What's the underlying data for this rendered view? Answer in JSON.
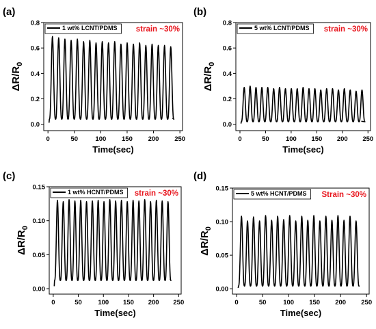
{
  "colors": {
    "line": "#000000",
    "strain": "#e8141c",
    "axis": "#000000"
  },
  "chart_data": [
    {
      "type": "line",
      "panel_label": "(a)",
      "legend": "1 wt% LCNT/PDMS",
      "annotation": "strain ~30%",
      "xlabel": "Time(sec)",
      "ylabel": "ΔR/R",
      "ylabel_sub": "0",
      "xlim": [
        -8,
        255
      ],
      "ylim": [
        -0.05,
        0.8
      ],
      "xticks": [
        0,
        50,
        100,
        150,
        200,
        250
      ],
      "yticks": [
        0.0,
        0.2,
        0.4,
        0.6,
        0.8
      ],
      "ytick_labels": [
        "0.0",
        "0.2",
        "0.4",
        "0.6",
        "0.8"
      ],
      "period_sec": 11.8,
      "start_sec": 2,
      "end_sec": 236,
      "baseline": 0.04,
      "peaks": [
        0.69,
        0.68,
        0.67,
        0.66,
        0.67,
        0.65,
        0.66,
        0.64,
        0.65,
        0.64,
        0.65,
        0.63,
        0.64,
        0.63,
        0.64,
        0.62,
        0.63,
        0.62,
        0.62,
        0.61
      ]
    },
    {
      "type": "line",
      "panel_label": "(b)",
      "legend": "5 wt% LCNT/PDMS",
      "annotation": "strain ~30%",
      "xlabel": "Time(sec)",
      "ylabel": "ΔR/R",
      "ylabel_sub": "0",
      "xlim": [
        -8,
        255
      ],
      "ylim": [
        -0.05,
        0.8
      ],
      "xticks": [
        0,
        50,
        100,
        150,
        200,
        250
      ],
      "yticks": [
        0.0,
        0.2,
        0.4,
        0.6,
        0.8
      ],
      "ytick_labels": [
        "0.0",
        "0.2",
        "0.4",
        "0.6",
        "0.8"
      ],
      "period_sec": 11.5,
      "start_sec": 2,
      "end_sec": 237,
      "baseline": 0.02,
      "peaks": [
        0.29,
        0.3,
        0.29,
        0.29,
        0.29,
        0.28,
        0.29,
        0.28,
        0.28,
        0.28,
        0.29,
        0.28,
        0.28,
        0.27,
        0.28,
        0.28,
        0.27,
        0.28,
        0.27,
        0.26,
        0.27
      ]
    },
    {
      "type": "line",
      "panel_label": "(c)",
      "legend": "1 wt% HCNT/PDMS",
      "annotation": "strain ~30%",
      "xlabel": "Time(sec)",
      "ylabel": "ΔR/R",
      "ylabel_sub": "0",
      "xlim": [
        -8,
        255
      ],
      "ylim": [
        -0.008,
        0.15
      ],
      "xticks": [
        0,
        50,
        100,
        150,
        200,
        250
      ],
      "yticks": [
        0.0,
        0.05,
        0.1,
        0.15
      ],
      "ytick_labels": [
        "0.00",
        "0.05",
        "0.10",
        "0.15"
      ],
      "period_sec": 11.6,
      "start_sec": 2,
      "end_sec": 233,
      "baseline": 0.012,
      "peaks": [
        0.13,
        0.128,
        0.131,
        0.129,
        0.13,
        0.128,
        0.129,
        0.13,
        0.128,
        0.131,
        0.129,
        0.13,
        0.128,
        0.13,
        0.129,
        0.131,
        0.128,
        0.13,
        0.129,
        0.128
      ]
    },
    {
      "type": "line",
      "panel_label": "(d)",
      "legend": "5 wt% HCNT/PDMS",
      "annotation": "Strain ~30%",
      "xlabel": "Time(sec)",
      "ylabel": "ΔR/R",
      "ylabel_sub": "0",
      "xlim": [
        -8,
        255
      ],
      "ylim": [
        -0.008,
        0.15
      ],
      "xticks": [
        0,
        50,
        100,
        150,
        200,
        250
      ],
      "yticks": [
        0.0,
        0.05,
        0.1,
        0.15
      ],
      "ytick_labels": [
        "0.00",
        "0.05",
        "0.10",
        "0.15"
      ],
      "period_sec": 11.6,
      "start_sec": 3,
      "end_sec": 234,
      "baseline": 0.004,
      "peaks": [
        0.108,
        0.101,
        0.107,
        0.101,
        0.109,
        0.102,
        0.108,
        0.103,
        0.109,
        0.101,
        0.108,
        0.102,
        0.109,
        0.101,
        0.108,
        0.102,
        0.109,
        0.102,
        0.108,
        0.101
      ]
    }
  ]
}
